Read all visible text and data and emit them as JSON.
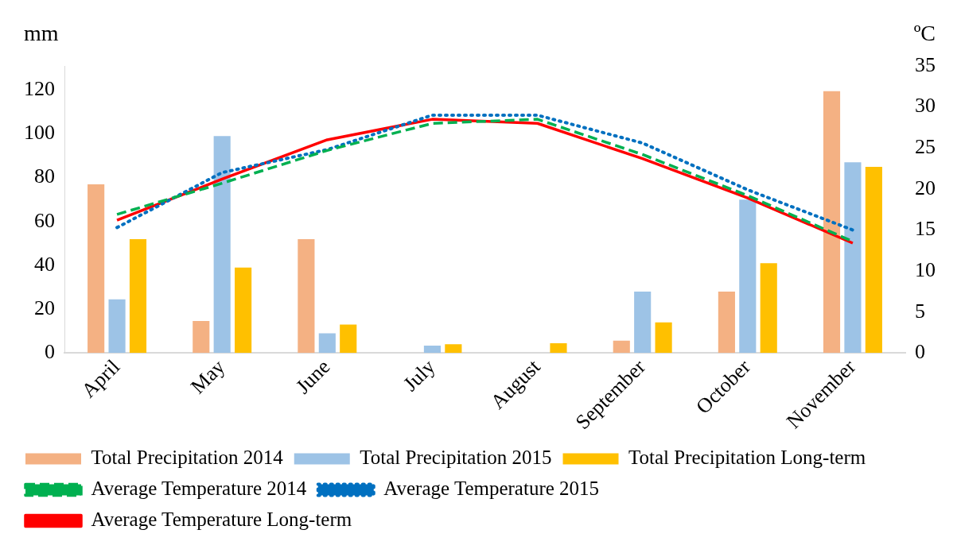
{
  "chart_data": {
    "type": "bar",
    "ylabel": "mm",
    "y2label": "ºC",
    "categories": [
      "April",
      "May",
      "June",
      "July",
      "August",
      "September",
      "October",
      "November"
    ],
    "series": [
      {
        "name": "Total Precipitation 2014",
        "color": "#f4b183",
        "values": [
          77,
          14.6,
          52,
          0,
          0,
          5.6,
          28,
          119.5
        ]
      },
      {
        "name": "Total Precipitation 2015",
        "color": "#9dc3e6",
        "values": [
          24.5,
          99,
          9,
          3.4,
          0,
          28,
          70,
          87
        ]
      },
      {
        "name": "Total Precipitation Long-term",
        "color": "#ffc000",
        "values": [
          52,
          39,
          13,
          4,
          4.5,
          14,
          41,
          85
        ]
      },
      {
        "name": "Average Temperature 2014",
        "type": "line",
        "axis": "y2",
        "line_style": "dashed",
        "color": "#00b050",
        "values": [
          16.9,
          20.7,
          24.7,
          28,
          28.5,
          24.2,
          19.2,
          13.6
        ]
      },
      {
        "name": "Average Temperature 2015",
        "type": "line",
        "axis": "y2",
        "line_style": "dotted",
        "color": "#0070c0",
        "values": [
          15.3,
          22,
          24.8,
          29,
          29,
          25.6,
          19.9,
          15
        ]
      },
      {
        "name": "Average Temperature Long-term",
        "type": "line",
        "axis": "y2",
        "line_style": "solid",
        "color": "#ff0000",
        "values": [
          16.2,
          21.2,
          26,
          28.5,
          28,
          23.7,
          18.9,
          13.4
        ]
      }
    ],
    "ylim": [
      0,
      131
    ],
    "yticks": [
      0,
      20,
      40,
      60,
      80,
      100,
      120
    ],
    "y2lim": [
      0,
      35
    ],
    "y2ticks": [
      0,
      5,
      10,
      15,
      20,
      25,
      30,
      35
    ],
    "grid": false,
    "legend": "bottom",
    "marker": "none"
  }
}
